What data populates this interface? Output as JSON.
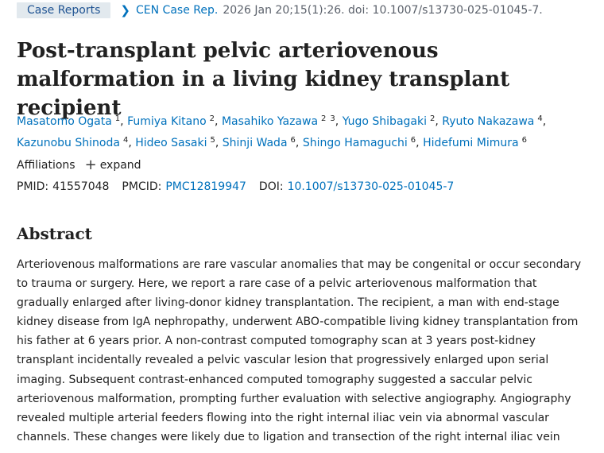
{
  "header": {
    "tag": "Case Reports",
    "journal": "CEN Case Rep.",
    "citation": "2026 Jan 20;15(1):26. doi: 10.1007/s13730-025-01045-7."
  },
  "article": {
    "title": "Post-transplant pelvic arteriovenous malformation in a living kidney transplant recipient"
  },
  "authors": [
    {
      "name": "Masatomo Ogata",
      "affs": [
        "1"
      ]
    },
    {
      "name": "Fumiya Kitano",
      "affs": [
        "2"
      ]
    },
    {
      "name": "Masahiko Yazawa",
      "affs": [
        "2",
        "3"
      ]
    },
    {
      "name": "Yugo Shibagaki",
      "affs": [
        "2"
      ]
    },
    {
      "name": "Ryuto Nakazawa",
      "affs": [
        "4"
      ]
    },
    {
      "name": "Kazunobu Shinoda",
      "affs": [
        "4"
      ]
    },
    {
      "name": "Hideo Sasaki",
      "affs": [
        "5"
      ]
    },
    {
      "name": "Shinji Wada",
      "affs": [
        "6"
      ]
    },
    {
      "name": "Shingo Hamaguchi",
      "affs": [
        "6"
      ]
    },
    {
      "name": "Hidefumi Mimura",
      "affs": [
        "6"
      ]
    }
  ],
  "affiliations": {
    "label": "Affiliations",
    "expand": "expand"
  },
  "ids": {
    "pmid_label": "PMID:",
    "pmid": "41557048",
    "pmcid_label": "PMCID:",
    "pmcid": "PMC12819947",
    "doi_label": "DOI:",
    "doi": "10.1007/s13730-025-01045-7"
  },
  "abstract": {
    "heading": "Abstract",
    "text": "Arteriovenous malformations are rare vascular anomalies that may be congenital or occur secondary to trauma or surgery. Here, we report a rare case of a pelvic arteriovenous malformation that gradually enlarged after living-donor kidney transplantation. The recipient, a man with end-stage kidney disease from IgA nephropathy, underwent ABO-compatible living kidney transplantation from his father at 6 years prior. A non-contrast computed tomography scan at 3 years post-kidney transplant incidentally revealed a pelvic vascular lesion that progressively enlarged upon serial imaging. Subsequent contrast-enhanced computed tomography suggested a saccular pelvic arteriovenous malformation, prompting further evaluation with selective angiography. Angiography revealed multiple arterial feeders flowing into the right internal iliac vein via abnormal vascular channels. These changes were likely due to ligation and transection of the right internal iliac vein"
  }
}
